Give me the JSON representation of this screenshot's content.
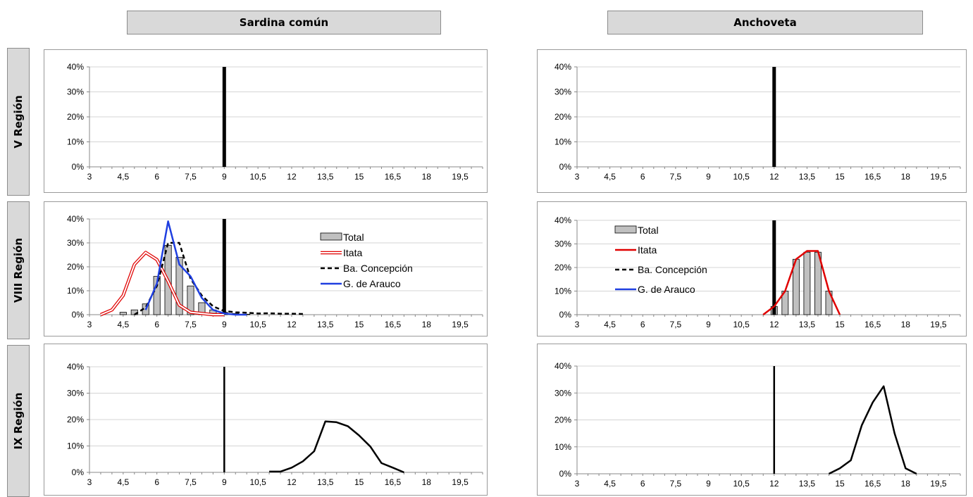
{
  "columns": [
    "Sardina común",
    "Anchoveta"
  ],
  "rows": [
    "V Región",
    "VIII Región",
    "IX Región"
  ],
  "colors": {
    "total_fill": "#c0c0c0",
    "itata": "#e00000",
    "concepcion": "#000000",
    "arauco": "#1f3fe0",
    "bar": "#000000"
  },
  "chart_data": [
    {
      "id": "s-v",
      "type": "bar",
      "xlabel": "",
      "ylabel": "",
      "xlim": [
        3,
        20.5
      ],
      "ylim": [
        0,
        0.4
      ],
      "x_ticks": [
        "3",
        "4,5",
        "6",
        "7,5",
        "9",
        "10,5",
        "12",
        "13,5",
        "15",
        "16,5",
        "18",
        "19,5"
      ],
      "y_ticks": [
        "0%",
        "10%",
        "20%",
        "30%",
        "40%"
      ],
      "grid": true,
      "reference_line": {
        "x": 9,
        "height": 0.4
      },
      "series": []
    },
    {
      "id": "a-v",
      "type": "bar",
      "xlabel": "",
      "ylabel": "",
      "xlim": [
        3,
        20.5
      ],
      "ylim": [
        0,
        0.4
      ],
      "x_ticks": [
        "3",
        "4,5",
        "6",
        "7,5",
        "9",
        "10,5",
        "12",
        "13,5",
        "15",
        "16,5",
        "18",
        "19,5"
      ],
      "y_ticks": [
        "0%",
        "10%",
        "20%",
        "30%",
        "40%"
      ],
      "grid": true,
      "reference_line": {
        "x": 12,
        "height": 0.4
      },
      "series": []
    },
    {
      "id": "s-viii",
      "type": "bar",
      "xlabel": "",
      "ylabel": "",
      "xlim": [
        3,
        20.5
      ],
      "ylim": [
        0,
        0.4
      ],
      "x_ticks": [
        "3",
        "4,5",
        "6",
        "7,5",
        "9",
        "10,5",
        "12",
        "13,5",
        "15",
        "16,5",
        "18",
        "19,5"
      ],
      "y_ticks": [
        "0%",
        "10%",
        "20%",
        "30%",
        "40%"
      ],
      "grid": true,
      "reference_line": {
        "x": 9,
        "height": 0.4
      },
      "legend": {
        "position": "right"
      },
      "series": [
        {
          "name": "Total",
          "kind": "bar",
          "x": [
            4.5,
            5,
            5.5,
            6,
            6.5,
            7,
            7.5,
            8,
            8.5,
            9,
            9.5,
            10
          ],
          "values": [
            0.01,
            0.02,
            0.045,
            0.16,
            0.29,
            0.24,
            0.12,
            0.05,
            0.02,
            0.01,
            0.005,
            0.002
          ]
        },
        {
          "name": "Itata",
          "kind": "double-line",
          "x": [
            3.5,
            4,
            4.5,
            5,
            5.5,
            6,
            6.5,
            7,
            7.5,
            8,
            8.5,
            9
          ],
          "values": [
            0.0,
            0.02,
            0.08,
            0.21,
            0.26,
            0.23,
            0.14,
            0.04,
            0.01,
            0.005,
            0.0,
            0.0
          ]
        },
        {
          "name": "Ba. Concepción",
          "kind": "dashed-line",
          "x": [
            5,
            5.5,
            6,
            6.5,
            7,
            7.5,
            8,
            8.5,
            9,
            9.5,
            10,
            10.5,
            11,
            11.5,
            12,
            12.5
          ],
          "values": [
            0.0,
            0.03,
            0.12,
            0.3,
            0.3,
            0.15,
            0.08,
            0.035,
            0.015,
            0.01,
            0.008,
            0.005,
            0.006,
            0.004,
            0.004,
            0.003
          ]
        },
        {
          "name": "G. de Arauco",
          "kind": "line",
          "x": [
            5.5,
            6,
            6.5,
            7,
            7.5,
            8,
            8.5,
            9,
            9.5,
            10
          ],
          "values": [
            0.02,
            0.13,
            0.39,
            0.21,
            0.16,
            0.07,
            0.02,
            0.005,
            0.0,
            0.0
          ]
        }
      ]
    },
    {
      "id": "a-viii",
      "type": "bar",
      "xlabel": "",
      "ylabel": "",
      "xlim": [
        3,
        20.5
      ],
      "ylim": [
        0,
        0.4
      ],
      "x_ticks": [
        "3",
        "4,5",
        "6",
        "7,5",
        "9",
        "10,5",
        "12",
        "13,5",
        "15",
        "16,5",
        "18",
        "19,5"
      ],
      "y_ticks": [
        "0%",
        "10%",
        "20%",
        "30%",
        "40%"
      ],
      "grid": true,
      "reference_line": {
        "x": 12,
        "height": 0.4
      },
      "legend": {
        "position": "left"
      },
      "series": [
        {
          "name": "Total",
          "kind": "bar",
          "x": [
            12,
            12.5,
            13,
            13.5,
            14,
            14.5
          ],
          "values": [
            0.035,
            0.1,
            0.235,
            0.265,
            0.265,
            0.1
          ]
        },
        {
          "name": "Itata",
          "kind": "line",
          "x": [
            11.5,
            12,
            12.5,
            13,
            13.5,
            14,
            14.5,
            15
          ],
          "values": [
            0.0,
            0.035,
            0.1,
            0.235,
            0.27,
            0.27,
            0.1,
            0.0
          ]
        },
        {
          "name": "Ba. Concepción",
          "kind": "dashed-line",
          "x": [],
          "values": []
        },
        {
          "name": "G. de Arauco",
          "kind": "line",
          "x": [],
          "values": []
        }
      ]
    },
    {
      "id": "s-ix",
      "type": "line",
      "xlabel": "",
      "ylabel": "",
      "xlim": [
        3,
        20.5
      ],
      "ylim": [
        0,
        0.4
      ],
      "x_ticks": [
        "3",
        "4,5",
        "6",
        "7,5",
        "9",
        "10,5",
        "12",
        "13,5",
        "15",
        "16,5",
        "18",
        "19,5"
      ],
      "y_ticks": [
        "0%",
        "10%",
        "20%",
        "30%",
        "40%"
      ],
      "grid": true,
      "reference_line": {
        "x": 9,
        "height": 0.4
      },
      "series": [
        {
          "kind": "line",
          "x": [
            11,
            11.5,
            12,
            12.5,
            13,
            13.5,
            14,
            14.5,
            15,
            15.5,
            16,
            16.5,
            17
          ],
          "values": [
            0.003,
            0.003,
            0.018,
            0.042,
            0.08,
            0.193,
            0.19,
            0.175,
            0.14,
            0.098,
            0.035,
            0.018,
            0.0
          ]
        }
      ]
    },
    {
      "id": "a-ix",
      "type": "line",
      "xlabel": "",
      "ylabel": "",
      "xlim": [
        3,
        20.5
      ],
      "ylim": [
        0,
        0.4
      ],
      "x_ticks": [
        "3",
        "4,5",
        "6",
        "7,5",
        "9",
        "10,5",
        "12",
        "13,5",
        "15",
        "16,5",
        "18",
        "19,5"
      ],
      "y_ticks": [
        "0%",
        "10%",
        "20%",
        "30%",
        "40%"
      ],
      "grid": true,
      "reference_line": {
        "x": 12,
        "height": 0.4
      },
      "series": [
        {
          "kind": "line",
          "x": [
            14.5,
            15,
            15.5,
            16,
            16.5,
            17,
            17.5,
            18,
            18.5
          ],
          "values": [
            0.0,
            0.02,
            0.05,
            0.18,
            0.265,
            0.325,
            0.15,
            0.02,
            0.0
          ]
        }
      ]
    }
  ]
}
